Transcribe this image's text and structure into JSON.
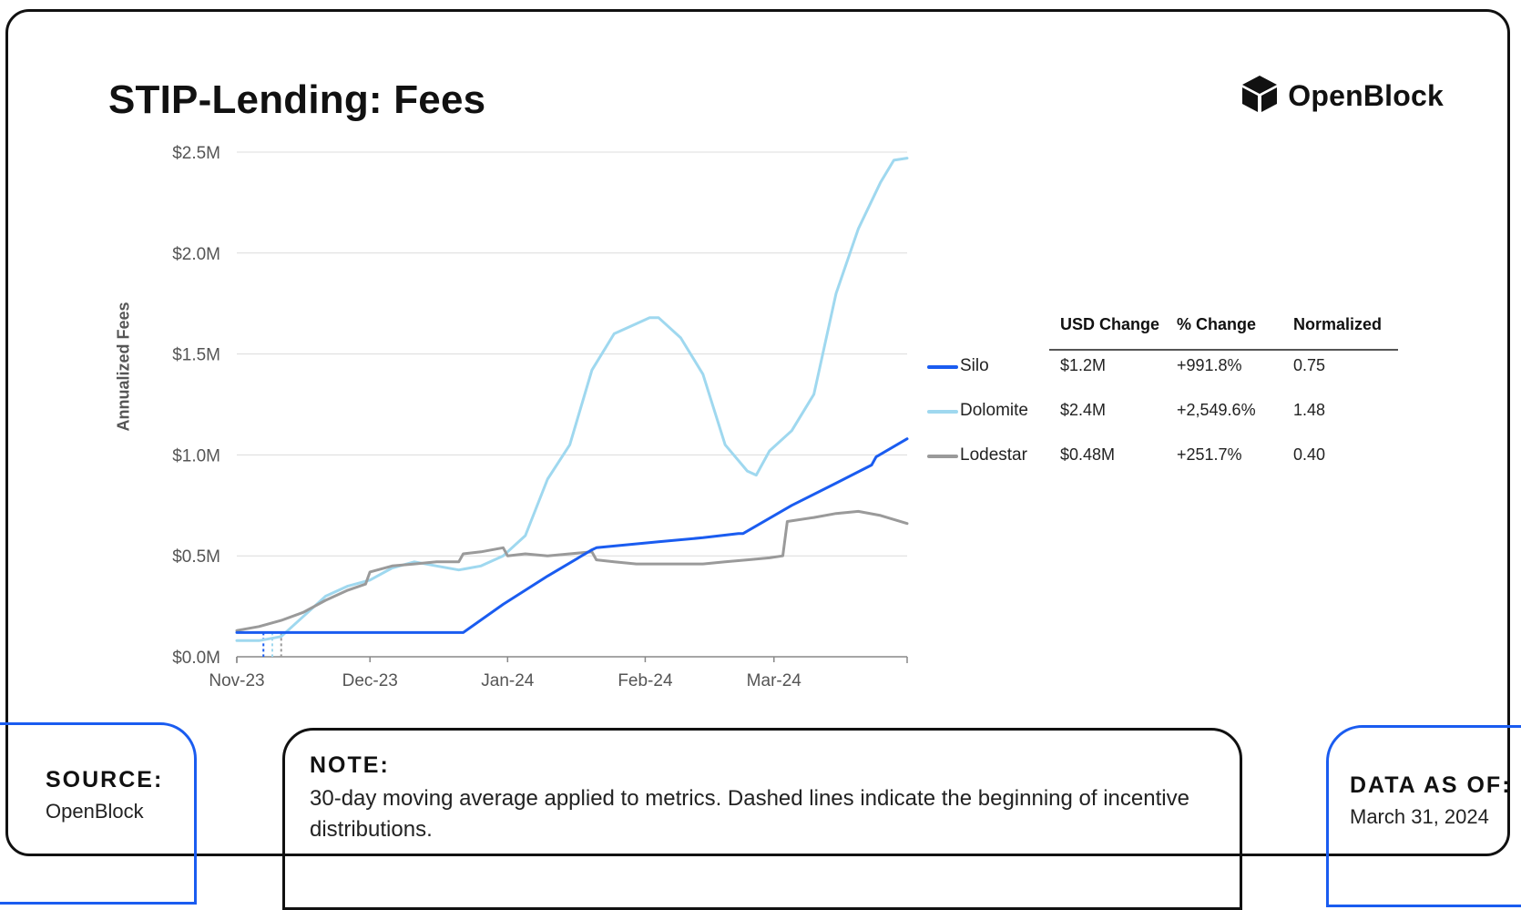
{
  "title": "STIP-Lending: Fees",
  "brand": {
    "name": "OpenBlock",
    "icon": "cube-icon"
  },
  "footer": {
    "source_label": "SOURCE:",
    "source_value": "OpenBlock",
    "note_label": "NOTE:",
    "note_text": "30-day moving average applied to metrics. Dashed lines indicate the beginning of incentive distributions.",
    "asof_label": "DATA AS OF:",
    "asof_value": "March 31, 2024"
  },
  "table": {
    "headers": [
      "USD Change",
      "% Change",
      "Normalized"
    ],
    "rows": [
      {
        "name": "Silo",
        "usd_change": "$1.2M",
        "pct_change": "+991.8%",
        "normalized": "0.75",
        "color": "#1a5cf0"
      },
      {
        "name": "Dolomite",
        "usd_change": "$2.4M",
        "pct_change": "+2,549.6%",
        "normalized": "1.48",
        "color": "#9fd8ef"
      },
      {
        "name": "Lodestar",
        "usd_change": "$0.48M",
        "pct_change": "+251.7%",
        "normalized": "0.40",
        "color": "#9a9a9a"
      }
    ]
  },
  "chart_data": {
    "type": "line",
    "title": "STIP-Lending: Fees",
    "xlabel": "",
    "ylabel": "Annualized Fees",
    "x_ticks": [
      "Nov-23",
      "Dec-23",
      "Jan-24",
      "Feb-24",
      "Mar-24"
    ],
    "y_ticks": [
      "$0.0M",
      "$0.5M",
      "$1.0M",
      "$1.5M",
      "$2.0M",
      "$2.5M"
    ],
    "ylim": [
      0,
      2.5
    ],
    "x_unit": "days since Nov-23",
    "xlim": [
      0,
      151
    ],
    "x_tick_values": [
      0,
      30,
      61,
      92,
      121
    ],
    "grid": true,
    "dashed_markers": [
      {
        "series": "Silo",
        "x": 6
      },
      {
        "series": "Dolomite",
        "x": 8
      },
      {
        "series": "Lodestar",
        "x": 10
      }
    ],
    "series": [
      {
        "name": "Silo",
        "color": "#1a5cf0",
        "x": [
          0,
          25,
          50,
          51,
          60,
          70,
          80,
          81,
          95,
          105,
          113,
          114,
          125,
          135,
          143,
          144,
          151
        ],
        "y": [
          0.12,
          0.12,
          0.12,
          0.12,
          0.26,
          0.4,
          0.53,
          0.54,
          0.57,
          0.59,
          0.61,
          0.61,
          0.75,
          0.86,
          0.95,
          0.99,
          1.08
        ]
      },
      {
        "name": "Dolomite",
        "color": "#9fd8ef",
        "x": [
          0,
          5,
          10,
          15,
          20,
          25,
          30,
          35,
          40,
          45,
          50,
          55,
          60,
          65,
          70,
          75,
          80,
          85,
          90,
          93,
          95,
          100,
          105,
          110,
          115,
          117,
          120,
          125,
          130,
          135,
          140,
          145,
          148,
          151
        ],
        "y": [
          0.08,
          0.08,
          0.1,
          0.2,
          0.3,
          0.35,
          0.38,
          0.44,
          0.47,
          0.45,
          0.43,
          0.45,
          0.5,
          0.6,
          0.88,
          1.05,
          1.42,
          1.6,
          1.65,
          1.68,
          1.68,
          1.58,
          1.4,
          1.05,
          0.92,
          0.9,
          1.02,
          1.12,
          1.3,
          1.8,
          2.12,
          2.35,
          2.46,
          2.47
        ]
      },
      {
        "name": "Lodestar",
        "color": "#9a9a9a",
        "x": [
          0,
          5,
          10,
          15,
          20,
          25,
          29,
          30,
          35,
          40,
          45,
          50,
          51,
          55,
          60,
          61,
          65,
          70,
          75,
          80,
          81,
          85,
          90,
          95,
          100,
          105,
          110,
          115,
          120,
          123,
          124,
          130,
          135,
          140,
          145,
          151
        ],
        "y": [
          0.13,
          0.15,
          0.18,
          0.22,
          0.28,
          0.33,
          0.36,
          0.42,
          0.45,
          0.46,
          0.47,
          0.47,
          0.51,
          0.52,
          0.54,
          0.5,
          0.51,
          0.5,
          0.51,
          0.52,
          0.48,
          0.47,
          0.46,
          0.46,
          0.46,
          0.46,
          0.47,
          0.48,
          0.49,
          0.5,
          0.67,
          0.69,
          0.71,
          0.72,
          0.7,
          0.66
        ]
      }
    ]
  }
}
